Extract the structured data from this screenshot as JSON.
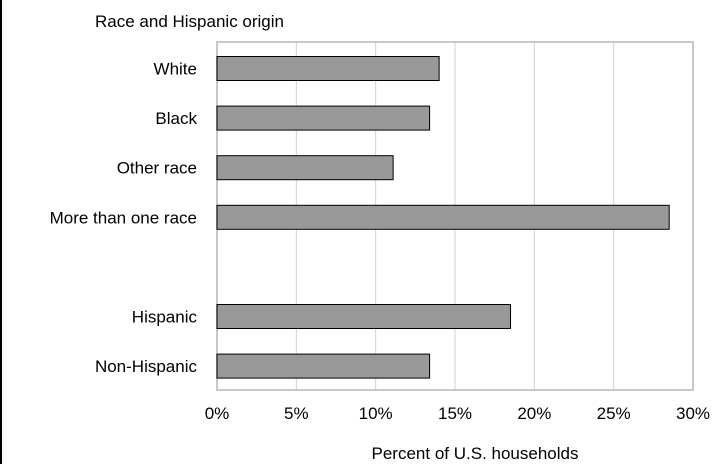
{
  "chart_data": {
    "type": "bar",
    "orientation": "horizontal",
    "header": "Race and Hispanic origin",
    "xlabel": "Percent of U.S. households",
    "ylabel": "",
    "xlim": [
      0,
      30
    ],
    "xticks": [
      0,
      5,
      10,
      15,
      20,
      25,
      30
    ],
    "tick_labels": [
      "0%",
      "5%",
      "10%",
      "15%",
      "20%",
      "25%",
      "30%"
    ],
    "grid": "vertical",
    "groups": [
      {
        "categories": [
          "White",
          "Black",
          "Other race",
          "More than one race"
        ],
        "values": [
          14.0,
          13.4,
          11.1,
          28.5
        ]
      },
      {
        "categories": [
          "Hispanic",
          "Non-Hispanic"
        ],
        "values": [
          18.5,
          13.4
        ]
      }
    ],
    "colors": {
      "bar": "#999999",
      "bar_edge": "#000000",
      "grid": "#d0d0d0",
      "frame": "#c8c8c8"
    }
  }
}
